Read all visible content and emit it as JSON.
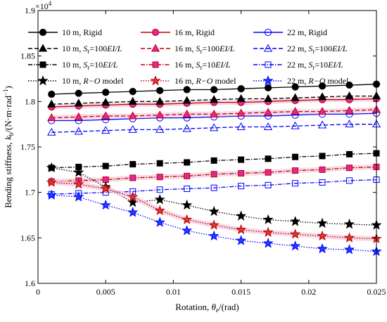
{
  "chart_data": {
    "type": "line",
    "xlabel_prefix": "Rotation, ",
    "xlabel_var": "θ",
    "xlabel_sub": "e",
    "xlabel_suffix": "/(rad)",
    "ylabel_prefix": "Bending stiffness, ",
    "ylabel_var": "k",
    "ylabel_sub": "b",
    "ylabel_suffix": "/(N·m·rad",
    "ylabel_sup": "−1",
    "ylabel_end": ")",
    "y_exponent_base": "×10",
    "y_exponent_power": "4",
    "xlim": [
      0,
      0.025
    ],
    "ylim": [
      1.6,
      1.9
    ],
    "xticks": [
      0,
      0.005,
      0.01,
      0.015,
      0.02,
      0.025
    ],
    "xtick_labels": [
      "0",
      "0.005",
      "0.01",
      "0.015",
      "0.02",
      "0.025"
    ],
    "yticks": [
      1.6,
      1.65,
      1.7,
      1.75,
      1.8,
      1.85,
      1.9
    ],
    "ytick_labels": [
      "1.6",
      "1.65",
      "1.7",
      "1.75",
      "1.8",
      "1.85",
      "1.9"
    ],
    "x": [
      0.001,
      0.003,
      0.005,
      0.007,
      0.009,
      0.011,
      0.013,
      0.015,
      0.017,
      0.019,
      0.021,
      0.023,
      0.025
    ],
    "series": [
      {
        "name": "10 m, Rigid",
        "color": "#000000",
        "dash": "solid",
        "marker": "circle-filled",
        "values": [
          1.808,
          1.809,
          1.81,
          1.811,
          1.812,
          1.813,
          1.813,
          1.814,
          1.815,
          1.816,
          1.817,
          1.818,
          1.819
        ]
      },
      {
        "name": "16 m, Rigid",
        "color": "#c00000",
        "dash": "solid",
        "marker": "circle-magenta",
        "values": [
          1.794,
          1.795,
          1.796,
          1.797,
          1.797,
          1.798,
          1.799,
          1.799,
          1.8,
          1.801,
          1.802,
          1.802,
          1.803
        ]
      },
      {
        "name": "22 m, Rigid",
        "color": "#0000ff",
        "dash": "solid",
        "marker": "circle-open",
        "values": [
          1.779,
          1.779,
          1.78,
          1.781,
          1.782,
          1.782,
          1.783,
          1.784,
          1.784,
          1.785,
          1.786,
          1.786,
          1.787
        ]
      },
      {
        "name": "10 m, S_r=100EI/L",
        "color": "#000000",
        "dash": "dashed",
        "marker": "triangle-filled",
        "values": [
          1.797,
          1.798,
          1.799,
          1.8,
          1.8,
          1.801,
          1.802,
          1.803,
          1.803,
          1.804,
          1.805,
          1.806,
          1.806
        ]
      },
      {
        "name": "16 m, S_r=100EI/L",
        "color": "#c00000",
        "dash": "dashed",
        "marker": "triangle-magenta",
        "values": [
          1.782,
          1.783,
          1.784,
          1.784,
          1.785,
          1.786,
          1.786,
          1.787,
          1.788,
          1.789,
          1.789,
          1.79,
          1.791
        ]
      },
      {
        "name": "22 m, S_r=100EI/L",
        "color": "#0000ff",
        "dash": "dashed",
        "marker": "triangle-open",
        "values": [
          1.766,
          1.767,
          1.768,
          1.769,
          1.769,
          1.77,
          1.771,
          1.772,
          1.772,
          1.773,
          1.774,
          1.775,
          1.775
        ]
      },
      {
        "name": "10 m, S_r=10EI/L",
        "color": "#000000",
        "dash": "dashdot",
        "marker": "square-filled",
        "values": [
          1.727,
          1.728,
          1.729,
          1.731,
          1.732,
          1.733,
          1.735,
          1.736,
          1.737,
          1.739,
          1.74,
          1.742,
          1.743
        ]
      },
      {
        "name": "16 m, S_r=10EI/L",
        "color": "#c00000",
        "dash": "dashdot",
        "marker": "square-magenta",
        "values": [
          1.712,
          1.713,
          1.714,
          1.716,
          1.717,
          1.718,
          1.72,
          1.721,
          1.722,
          1.724,
          1.725,
          1.727,
          1.728
        ]
      },
      {
        "name": "22 m, S_r=10EI/L",
        "color": "#0000ff",
        "dash": "dashdot",
        "marker": "square-open",
        "values": [
          1.698,
          1.699,
          1.7,
          1.701,
          1.703,
          1.704,
          1.705,
          1.707,
          1.708,
          1.71,
          1.711,
          1.713,
          1.714
        ]
      },
      {
        "name": "10 m, R−O model",
        "color": "#000000",
        "dash": "dotted",
        "marker": "star-filled",
        "values": [
          1.727,
          1.722,
          1.706,
          1.689,
          1.692,
          1.686,
          1.679,
          1.674,
          1.67,
          1.668,
          1.666,
          1.665,
          1.664
        ]
      },
      {
        "name": "16 m, R−O model",
        "color": "#c00000",
        "dash": "dotted",
        "marker": "star-red",
        "values": [
          1.711,
          1.709,
          1.704,
          1.695,
          1.68,
          1.67,
          1.664,
          1.659,
          1.656,
          1.654,
          1.652,
          1.65,
          1.649
        ]
      },
      {
        "name": "22 m, R−O model",
        "color": "#0000ff",
        "dash": "dotted",
        "marker": "star-blue",
        "values": [
          1.697,
          1.695,
          1.686,
          1.678,
          1.667,
          1.658,
          1.652,
          1.647,
          1.644,
          1.641,
          1.638,
          1.637,
          1.635
        ]
      }
    ],
    "legend": {
      "placement": "top",
      "rows": [
        [
          {
            "prefix": "10 m, Rigid"
          },
          {
            "prefix": "16 m, Rigid"
          },
          {
            "prefix": "22 m, Rigid"
          }
        ],
        [
          {
            "prefix": "10 m, ",
            "s": "S",
            "sub": "r",
            "mid": "=100",
            "it": "EI/L"
          },
          {
            "prefix": "16 m, ",
            "s": "S",
            "sub": "r",
            "mid": "=100",
            "it": "EI/L"
          },
          {
            "prefix": "22 m, ",
            "s": "S",
            "sub": "r",
            "mid": "=100",
            "it": "EI/L"
          }
        ],
        [
          {
            "prefix": "10 m, ",
            "s": "S",
            "sub": "r",
            "mid": "=10",
            "it": "EI/L"
          },
          {
            "prefix": "16 m, ",
            "s": "S",
            "sub": "r",
            "mid": "=10",
            "it": "EI/L"
          },
          {
            "prefix": "22 m, ",
            "s": "S",
            "sub": "r",
            "mid": "=10",
            "it": "EI/L"
          }
        ],
        [
          {
            "prefix": "10 m, ",
            "it2": "R−O",
            "tail": " model"
          },
          {
            "prefix": "16 m, ",
            "it2": "R−O",
            "tail": " model"
          },
          {
            "prefix": "22 m, ",
            "it2": "R−O",
            "tail": " model"
          }
        ]
      ]
    }
  }
}
